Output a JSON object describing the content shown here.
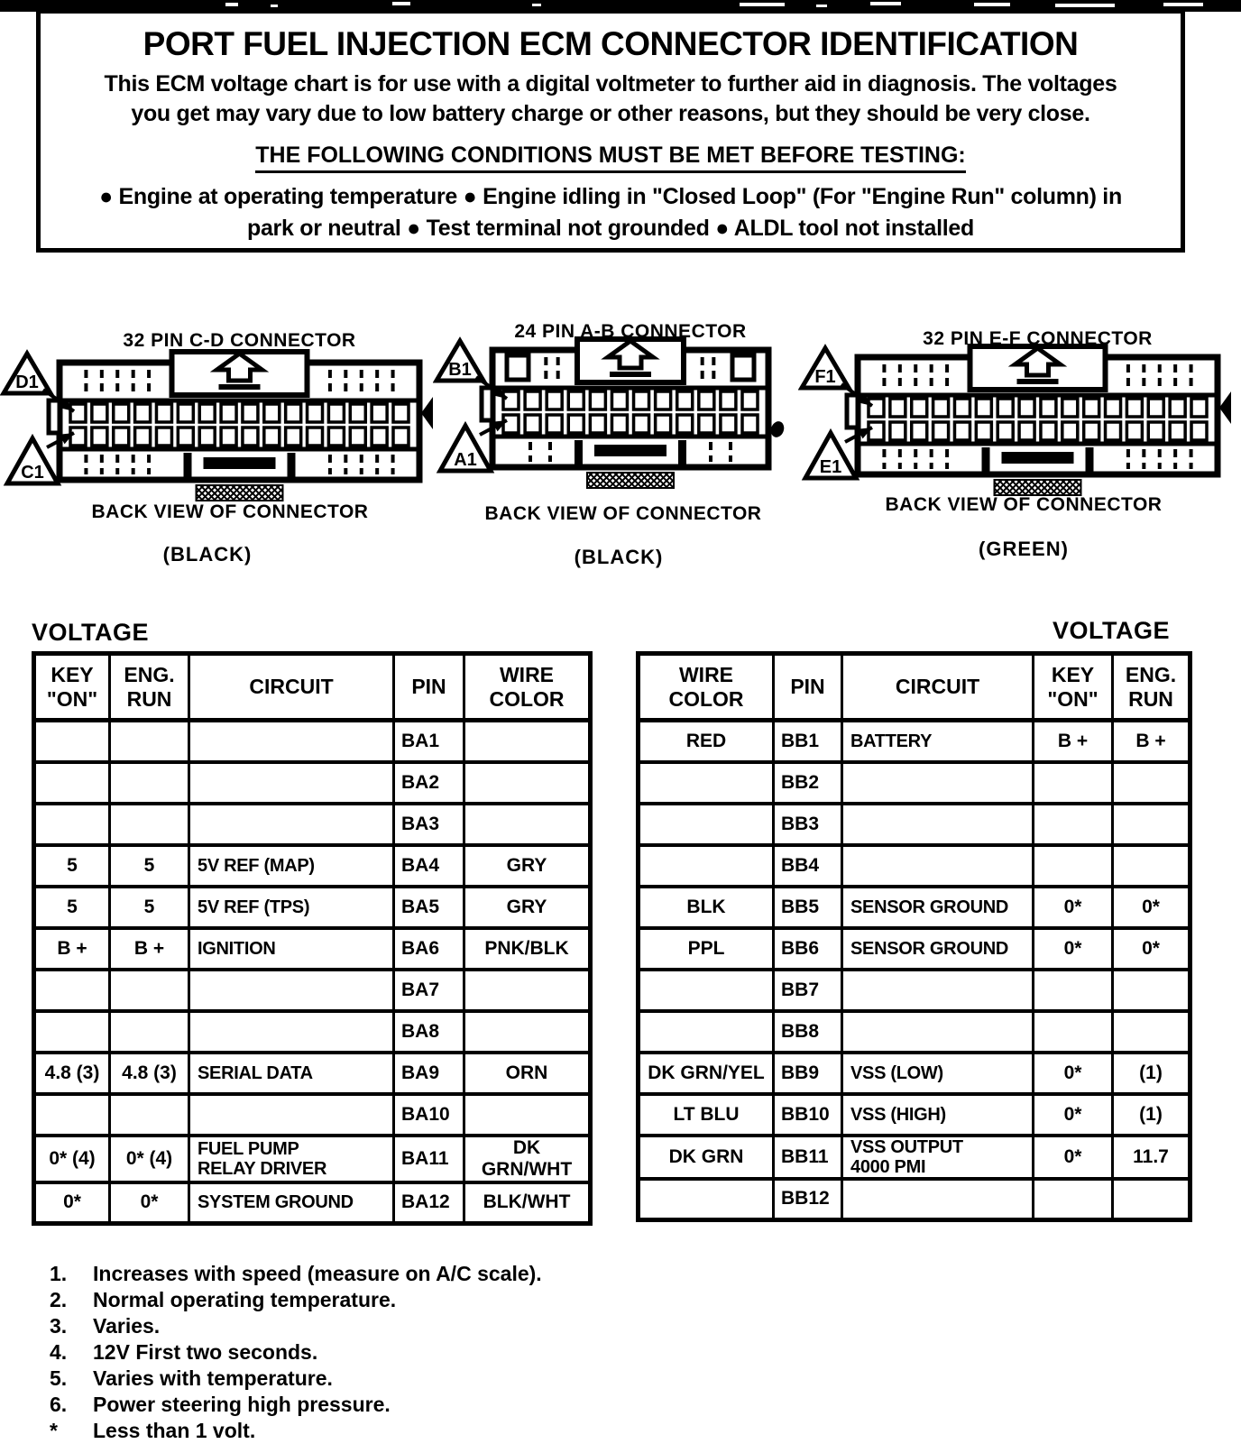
{
  "header": {
    "title": "PORT FUEL INJECTION ECM CONNECTOR IDENTIFICATION",
    "intro_line1": "This ECM voltage chart is for use with a digital voltmeter to further aid in diagnosis.  The voltages",
    "intro_line2": "you get may vary due to low battery charge or other reasons, but they should be very close.",
    "conditions_heading": "THE FOLLOWING CONDITIONS MUST BE MET BEFORE TESTING:",
    "conditions_line1": "●  Engine at operating temperature  ●  Engine idling in \"Closed Loop\" (For \"Engine Run\" column) in",
    "conditions_line2": "park or neutral  ●  Test terminal not grounded  ●  ALDL tool not installed"
  },
  "connectors": [
    {
      "title": "32 PIN C-D  CONNECTOR",
      "top_label": "D1",
      "bottom_label": "C1",
      "caption": "BACK VIEW OF CONNECTOR",
      "color": "(BLACK)",
      "pins_per_row": 16,
      "wing_squares": false,
      "right_mark": "tab"
    },
    {
      "title": "24 PIN A-B  CONNECTOR",
      "top_label": "B1",
      "bottom_label": "A1",
      "caption": "BACK VIEW OF CONNECTOR",
      "color": "(BLACK)",
      "pins_per_row": 12,
      "wing_squares": true,
      "right_mark": "blot"
    },
    {
      "title": "32 PIN E-F  CONNECTOR",
      "top_label": "F1",
      "bottom_label": "E1",
      "caption": "BACK VIEW OF CONNECTOR",
      "color": "(GREEN)",
      "pins_per_row": 16,
      "wing_squares": false,
      "right_mark": "tab"
    }
  ],
  "left_table": {
    "voltage_label": "VOLTAGE",
    "headers": {
      "key_on": "KEY\n\"ON\"",
      "eng_run": "ENG.\nRUN",
      "circuit": "CIRCUIT",
      "pin": "PIN",
      "wire": "WIRE\nCOLOR"
    },
    "rows": [
      {
        "key_on": "",
        "eng_run": "",
        "circuit": "",
        "pin": "BA1",
        "wire": ""
      },
      {
        "key_on": "",
        "eng_run": "",
        "circuit": "",
        "pin": "BA2",
        "wire": ""
      },
      {
        "key_on": "",
        "eng_run": "",
        "circuit": "",
        "pin": "BA3",
        "wire": ""
      },
      {
        "key_on": "5",
        "eng_run": "5",
        "circuit": "5V REF (MAP)",
        "pin": "BA4",
        "wire": "GRY"
      },
      {
        "key_on": "5",
        "eng_run": "5",
        "circuit": "5V REF (TPS)",
        "pin": "BA5",
        "wire": "GRY"
      },
      {
        "key_on": "B +",
        "eng_run": "B +",
        "circuit": "IGNITION",
        "pin": "BA6",
        "wire": "PNK/BLK"
      },
      {
        "key_on": "",
        "eng_run": "",
        "circuit": "",
        "pin": "BA7",
        "wire": ""
      },
      {
        "key_on": "",
        "eng_run": "",
        "circuit": "",
        "pin": "BA8",
        "wire": ""
      },
      {
        "key_on": "4.8 (3)",
        "eng_run": "4.8 (3)",
        "circuit": "SERIAL DATA",
        "pin": "BA9",
        "wire": "ORN"
      },
      {
        "key_on": "",
        "eng_run": "",
        "circuit": "",
        "pin": "BA10",
        "wire": ""
      },
      {
        "key_on": "0* (4)",
        "eng_run": "0* (4)",
        "circuit": "FUEL PUMP\nRELAY DRIVER",
        "pin": "BA11",
        "wire": "DK GRN/WHT"
      },
      {
        "key_on": "0*",
        "eng_run": "0*",
        "circuit": "SYSTEM GROUND",
        "pin": "BA12",
        "wire": "BLK/WHT"
      }
    ]
  },
  "right_table": {
    "voltage_label": "VOLTAGE",
    "headers": {
      "wire": "WIRE\nCOLOR",
      "pin": "PIN",
      "circuit": "CIRCUIT",
      "key_on": "KEY\n\"ON\"",
      "eng_run": "ENG.\nRUN"
    },
    "rows": [
      {
        "wire": "RED",
        "pin": "BB1",
        "circuit": "BATTERY",
        "key_on": "B +",
        "eng_run": "B +"
      },
      {
        "wire": "",
        "pin": "BB2",
        "circuit": "",
        "key_on": "",
        "eng_run": ""
      },
      {
        "wire": "",
        "pin": "BB3",
        "circuit": "",
        "key_on": "",
        "eng_run": ""
      },
      {
        "wire": "",
        "pin": "BB4",
        "circuit": "",
        "key_on": "",
        "eng_run": ""
      },
      {
        "wire": "BLK",
        "pin": "BB5",
        "circuit": "SENSOR GROUND",
        "key_on": "0*",
        "eng_run": "0*"
      },
      {
        "wire": "PPL",
        "pin": "BB6",
        "circuit": "SENSOR GROUND",
        "key_on": "0*",
        "eng_run": "0*"
      },
      {
        "wire": "",
        "pin": "BB7",
        "circuit": "",
        "key_on": "",
        "eng_run": ""
      },
      {
        "wire": "",
        "pin": "BB8",
        "circuit": "",
        "key_on": "",
        "eng_run": ""
      },
      {
        "wire": "DK GRN/YEL",
        "pin": "BB9",
        "circuit": "VSS (LOW)",
        "key_on": "0*",
        "eng_run": "(1)"
      },
      {
        "wire": "LT BLU",
        "pin": "BB10",
        "circuit": "VSS (HIGH)",
        "key_on": "0*",
        "eng_run": "(1)"
      },
      {
        "wire": "DK GRN",
        "pin": "BB11",
        "circuit": "VSS OUTPUT\n4000 PMI",
        "key_on": "0*",
        "eng_run": "11.7"
      },
      {
        "wire": "",
        "pin": "BB12",
        "circuit": "",
        "key_on": "",
        "eng_run": ""
      }
    ]
  },
  "footnotes": {
    "items": [
      {
        "marker": "1.",
        "text": "Increases with speed (measure on A/C scale)."
      },
      {
        "marker": "2.",
        "text": "Normal operating temperature."
      },
      {
        "marker": "3.",
        "text": "Varies."
      },
      {
        "marker": "4.",
        "text": "12V First two seconds."
      },
      {
        "marker": "5.",
        "text": "Varies with temperature."
      },
      {
        "marker": "6.",
        "text": "Power steering high pressure."
      },
      {
        "marker": "*",
        "text": "Less than 1 volt."
      }
    ]
  },
  "colors": {
    "ink": "#000000",
    "paper": "#ffffff"
  }
}
